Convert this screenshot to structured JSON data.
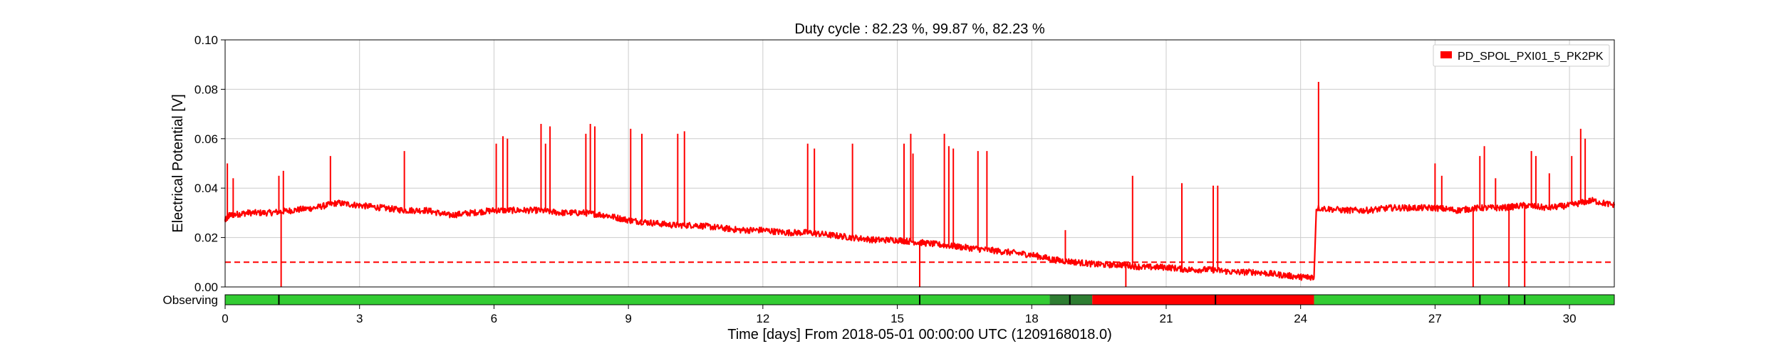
{
  "chart_data": {
    "type": "line",
    "title": "Duty cycle : 82.23 %, 99.87 %, 82.23 %",
    "xlabel": "Time [days] From 2018-05-01 00:00:00 UTC (1209168018.0)",
    "ylabel": "Electrical Potential [V]",
    "xlim": [
      0,
      31
    ],
    "ylim": [
      0,
      0.1
    ],
    "x_ticks": [
      0,
      3,
      6,
      9,
      12,
      15,
      18,
      21,
      24,
      27,
      30
    ],
    "x_tick_labels": [
      "0",
      "3",
      "6",
      "9",
      "12",
      "15",
      "18",
      "21",
      "24",
      "27",
      "30"
    ],
    "y_ticks": [
      0,
      0.02,
      0.04,
      0.06,
      0.08,
      0.1
    ],
    "y_tick_labels": [
      "0.00",
      "0.02",
      "0.04",
      "0.06",
      "0.08",
      "0.10"
    ],
    "grid": true,
    "legend_position": "top-right",
    "series": [
      {
        "name": "PD_SPOL_PXI01_5_PK2PK",
        "color": "#ff0000",
        "x": [
          0,
          0.1,
          0.5,
          1.0,
          1.5,
          2.0,
          2.5,
          3.0,
          3.5,
          4.0,
          4.5,
          5.0,
          5.5,
          6.0,
          6.5,
          7.0,
          7.5,
          8.0,
          8.5,
          9.0,
          9.5,
          10.0,
          10.5,
          11.0,
          11.5,
          12.0,
          12.5,
          13.0,
          13.5,
          14.0,
          14.5,
          15.0,
          15.5,
          16.0,
          16.5,
          17.0,
          17.5,
          18.0,
          18.5,
          19.0,
          19.5,
          20.0,
          20.5,
          21.0,
          21.5,
          22.0,
          22.5,
          23.0,
          23.5,
          24.0,
          24.3,
          24.35,
          25.0,
          25.5,
          26.0,
          26.5,
          27.0,
          27.5,
          28.0,
          28.5,
          29.0,
          29.5,
          30.0,
          30.5,
          31.0
        ],
        "y": [
          0.027,
          0.029,
          0.03,
          0.03,
          0.031,
          0.032,
          0.034,
          0.033,
          0.032,
          0.031,
          0.031,
          0.029,
          0.03,
          0.031,
          0.031,
          0.031,
          0.03,
          0.03,
          0.029,
          0.027,
          0.026,
          0.025,
          0.025,
          0.024,
          0.023,
          0.023,
          0.022,
          0.022,
          0.021,
          0.02,
          0.019,
          0.019,
          0.018,
          0.017,
          0.016,
          0.015,
          0.014,
          0.013,
          0.011,
          0.01,
          0.009,
          0.009,
          0.008,
          0.008,
          0.007,
          0.007,
          0.006,
          0.006,
          0.005,
          0.004,
          0.004,
          0.032,
          0.031,
          0.031,
          0.032,
          0.032,
          0.032,
          0.031,
          0.032,
          0.032,
          0.033,
          0.032,
          0.033,
          0.035,
          0.033
        ],
        "spikes": [
          [
            0.05,
            0.05
          ],
          [
            0.18,
            0.044
          ],
          [
            1.2,
            0.045
          ],
          [
            1.25,
            0.0
          ],
          [
            1.3,
            0.047
          ],
          [
            2.35,
            0.053
          ],
          [
            4.0,
            0.055
          ],
          [
            6.05,
            0.058
          ],
          [
            6.2,
            0.061
          ],
          [
            6.3,
            0.06
          ],
          [
            7.05,
            0.066
          ],
          [
            7.15,
            0.058
          ],
          [
            7.25,
            0.065
          ],
          [
            8.05,
            0.062
          ],
          [
            8.15,
            0.066
          ],
          [
            8.25,
            0.065
          ],
          [
            9.05,
            0.064
          ],
          [
            9.3,
            0.062
          ],
          [
            10.1,
            0.062
          ],
          [
            10.25,
            0.063
          ],
          [
            13.0,
            0.058
          ],
          [
            13.15,
            0.056
          ],
          [
            14.0,
            0.058
          ],
          [
            15.15,
            0.058
          ],
          [
            15.3,
            0.062
          ],
          [
            15.35,
            0.054
          ],
          [
            15.5,
            0.0
          ],
          [
            16.05,
            0.062
          ],
          [
            16.15,
            0.057
          ],
          [
            16.25,
            0.056
          ],
          [
            16.8,
            0.055
          ],
          [
            17.0,
            0.055
          ],
          [
            18.75,
            0.023
          ],
          [
            20.1,
            0.0
          ],
          [
            20.25,
            0.045
          ],
          [
            21.35,
            0.042
          ],
          [
            22.05,
            0.041
          ],
          [
            22.15,
            0.041
          ],
          [
            24.4,
            0.083
          ],
          [
            27.0,
            0.05
          ],
          [
            27.15,
            0.045
          ],
          [
            27.85,
            0.0
          ],
          [
            28.0,
            0.053
          ],
          [
            28.1,
            0.057
          ],
          [
            28.35,
            0.044
          ],
          [
            28.65,
            0.0
          ],
          [
            29.0,
            0.0
          ],
          [
            29.15,
            0.055
          ],
          [
            29.25,
            0.053
          ],
          [
            29.55,
            0.046
          ],
          [
            30.05,
            0.053
          ],
          [
            30.25,
            0.064
          ],
          [
            30.35,
            0.06
          ]
        ]
      }
    ],
    "threshold": {
      "y": 0.01,
      "style": "dashed",
      "color": "#ff0000"
    },
    "segments": {
      "label": "Observing",
      "colors": {
        "active": "#33cc33",
        "inactive": "#ff0000",
        "unknown": "#2e7d32",
        "tick": "#000000"
      },
      "states": [
        [
          0,
          18.4,
          "active"
        ],
        [
          18.4,
          19.35,
          "unknown"
        ],
        [
          19.35,
          24.3,
          "inactive"
        ],
        [
          24.3,
          31,
          "active"
        ]
      ],
      "ticks": [
        1.2,
        15.5,
        18.85,
        22.1,
        28.0,
        28.65,
        29.0
      ]
    }
  }
}
